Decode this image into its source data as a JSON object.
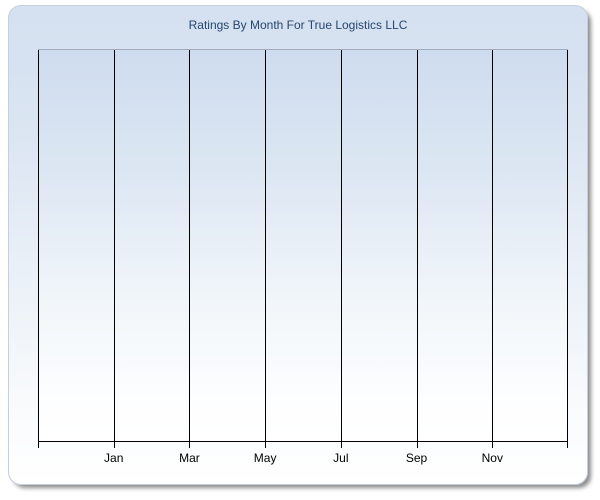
{
  "chart": {
    "title": "Ratings By Month For True Logistics LLC"
  },
  "chart_data": {
    "type": "line",
    "title": "Ratings By Month For True Logistics LLC",
    "xlabel": "",
    "ylabel": "",
    "x_tick_labels": [
      "Jan",
      "Mar",
      "May",
      "Jul",
      "Sep",
      "Nov"
    ],
    "x_gridline_count": 8,
    "y_tick_labels": [],
    "series": [],
    "legend": "none",
    "grid": "vertical-only",
    "plot_empty": true
  },
  "colors": {
    "title_text": "#26466d",
    "axis_label_text": "#000000",
    "gridline": "#000000",
    "plot_border_top": "#a3adbd",
    "card_border": "#c5cfdd",
    "card_gradient_top": "#d5e1f0",
    "card_gradient_bottom": "#ffffff",
    "plot_gradient_top": "#cedcef",
    "plot_gradient_bottom": "#ffffff"
  }
}
